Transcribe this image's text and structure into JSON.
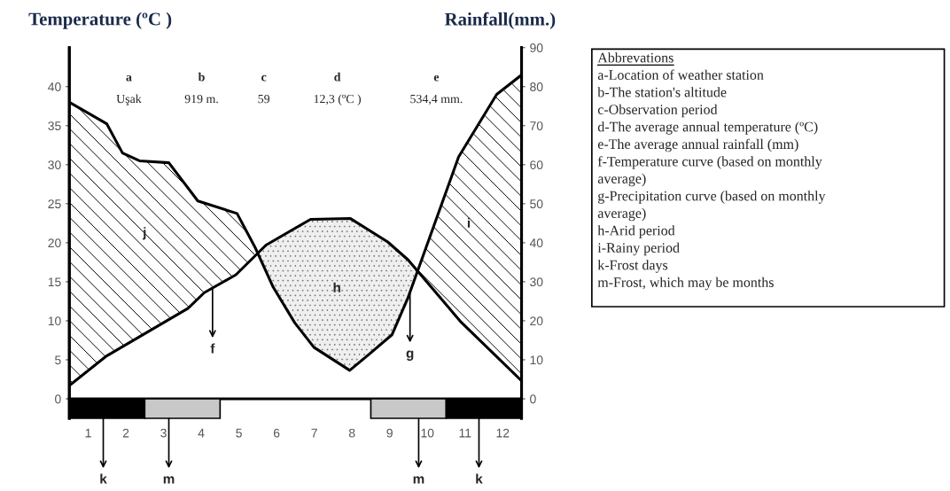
{
  "chart_data": {
    "type": "line",
    "ylabel": "Temperature (ºC )",
    "y2label": "Rainfall(mm.)",
    "xlim": [
      0.5,
      12.5
    ],
    "xticks": [
      1,
      2,
      3,
      4,
      5,
      6,
      7,
      8,
      9,
      10,
      11,
      12
    ],
    "ylim": [
      -2.5,
      45
    ],
    "yticks": [
      0,
      5,
      10,
      15,
      20,
      25,
      30,
      35,
      40
    ],
    "y2lim": [
      -5,
      90
    ],
    "y2ticks": [
      0,
      10,
      20,
      30,
      40,
      50,
      60,
      70,
      80,
      90
    ],
    "series": [
      {
        "color": "#000000",
        "x": [
          0.5,
          1.49,
          3.65,
          4.08,
          4.92,
          5.72,
          6.9,
          7.96,
          8.95,
          9.49,
          10.9,
          12.5
        ],
        "values": [
          1.7,
          5.5,
          11.6,
          13.6,
          15.9,
          19.7,
          23.0,
          23.1,
          20.1,
          17.8,
          9.8,
          2.3
        ]
      },
      {
        "color": "#000000",
        "axis": "y2",
        "x": [
          0.5,
          1.49,
          1.91,
          2.36,
          3.14,
          3.91,
          4.95,
          5.44,
          5.91,
          6.48,
          6.99,
          7.94,
          8.45,
          9.06,
          9.49,
          9.96,
          10.83,
          11.84,
          12.5
        ],
        "values": [
          76,
          70.5,
          63,
          61,
          60.5,
          50.7,
          47.5,
          38.6,
          28.6,
          19.5,
          13.2,
          7.3,
          11.4,
          16.4,
          26,
          38.6,
          62,
          78,
          83
        ]
      }
    ],
    "bands": [
      {
        "axis": "x",
        "from": 0.5,
        "to": 2.5,
        "color": "#000000"
      },
      {
        "axis": "x",
        "from": 2.5,
        "to": 4.5,
        "color": "#c8c8c8"
      },
      {
        "axis": "x",
        "from": 8.5,
        "to": 10.5,
        "color": "#c8c8c8"
      },
      {
        "axis": "x",
        "from": 10.5,
        "to": 12.5,
        "color": "#000000"
      }
    ],
    "annotations": [
      "a",
      "b",
      "c",
      "d",
      "e",
      "Uşak",
      "919 m.",
      "59",
      "12,3 (ºC )",
      "534,4 mm.",
      "j",
      "h",
      "i",
      "Abbrevations",
      "a-Location of weather station",
      "b-The station's altitude",
      "c-Observation period",
      "d-The average annual temperature (ºC)",
      "e-The average annual rainfall (mm)",
      "f-Temperature curve (based on monthly",
      "average)",
      "g-Precipitation curve (based on monthly",
      "average)",
      "h-Arid period",
      "i-Rainy period",
      "k-Frost days",
      "m-Frost, which may be months",
      {
        "text": "f",
        "x": 4.3,
        "y": 14.2
      },
      {
        "text": "g",
        "x": 9.54,
        "y": 13.6
      },
      {
        "text": "k",
        "x": 1.4,
        "y": -2.5
      },
      {
        "text": "m",
        "x": 3.14,
        "y": -2.5
      },
      {
        "text": "m",
        "x": 9.77,
        "y": -2.5
      },
      {
        "text": "k",
        "x": 11.37,
        "y": -2.5
      }
    ]
  }
}
